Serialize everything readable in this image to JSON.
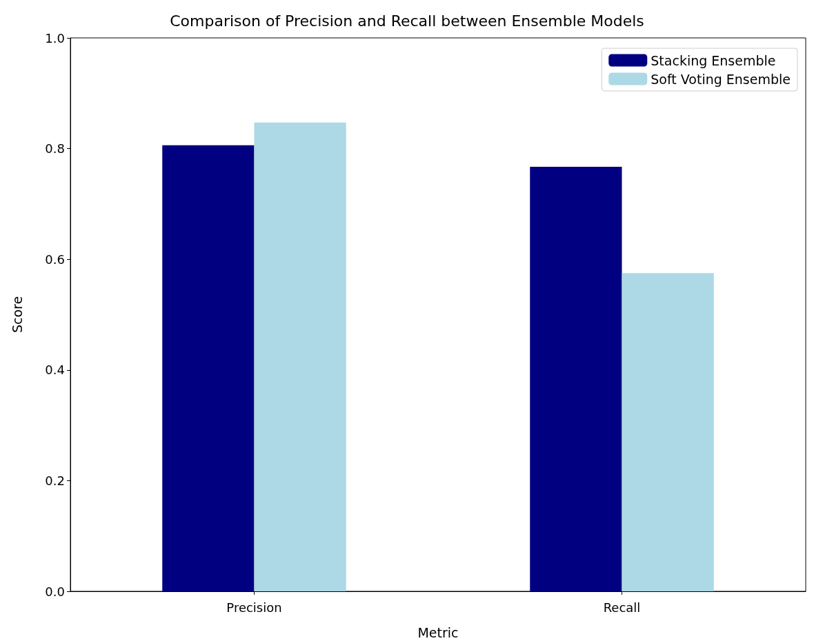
{
  "chart_data": {
    "type": "bar",
    "title": "Comparison of Precision and Recall between Ensemble Models",
    "xlabel": "Metric",
    "ylabel": "Score",
    "categories": [
      "Precision",
      "Recall"
    ],
    "series": [
      {
        "name": "Stacking Ensemble",
        "color": "#000080",
        "values": [
          0.806,
          0.767
        ]
      },
      {
        "name": "Soft Voting Ensemble",
        "color": "#add8e6",
        "values": [
          0.847,
          0.575
        ]
      }
    ],
    "ylim": [
      0,
      1
    ],
    "yticks": [
      {
        "value": 0,
        "label": "0.0"
      },
      {
        "value": 0.2,
        "label": "0.2"
      },
      {
        "value": 0.4,
        "label": "0.4"
      },
      {
        "value": 0.6,
        "label": "0.6"
      },
      {
        "value": 0.8,
        "label": "0.8"
      },
      {
        "value": 1,
        "label": "1.0"
      }
    ],
    "grid": false,
    "legend": "top right"
  }
}
